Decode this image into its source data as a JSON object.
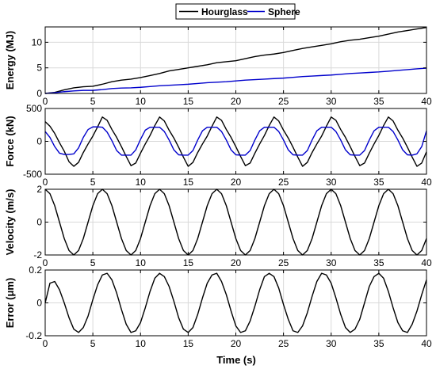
{
  "legend": [
    {
      "name": "Hourglass",
      "color": "#000000"
    },
    {
      "name": "Sphere",
      "color": "#0000cc"
    }
  ],
  "chart_data": [
    {
      "type": "line",
      "ylabel": "Energy (MJ)",
      "xlim": [
        0,
        40
      ],
      "ylim": [
        0,
        13
      ],
      "yticks": [
        0,
        5,
        10
      ],
      "xticks": [
        0,
        5,
        10,
        15,
        20,
        25,
        30,
        35,
        40
      ],
      "grid": true,
      "series": [
        {
          "name": "Hourglass",
          "color": "#000000",
          "x": [
            0,
            1,
            2,
            3,
            4,
            5,
            6,
            7,
            8,
            9,
            10,
            11,
            12,
            13,
            14,
            15,
            16,
            17,
            18,
            19,
            20,
            21,
            22,
            23,
            24,
            25,
            26,
            27,
            28,
            29,
            30,
            31,
            32,
            33,
            34,
            35,
            36,
            37,
            38,
            39,
            40
          ],
          "y": [
            0,
            0.2,
            0.7,
            1.1,
            1.3,
            1.4,
            1.8,
            2.3,
            2.6,
            2.8,
            3.1,
            3.5,
            3.9,
            4.4,
            4.7,
            5.0,
            5.3,
            5.6,
            6.0,
            6.2,
            6.4,
            6.8,
            7.2,
            7.5,
            7.7,
            8.0,
            8.4,
            8.8,
            9.1,
            9.4,
            9.7,
            10.1,
            10.4,
            10.6,
            10.9,
            11.2,
            11.6,
            12.0,
            12.3,
            12.6,
            12.9
          ]
        },
        {
          "name": "Sphere",
          "color": "#0000cc",
          "x": [
            0,
            1,
            2,
            3,
            4,
            5,
            6,
            7,
            8,
            9,
            10,
            11,
            12,
            13,
            14,
            15,
            16,
            17,
            18,
            19,
            20,
            21,
            22,
            23,
            24,
            25,
            26,
            27,
            28,
            29,
            30,
            31,
            32,
            33,
            34,
            35,
            36,
            37,
            38,
            39,
            40
          ],
          "y": [
            0,
            0.15,
            0.35,
            0.5,
            0.6,
            0.6,
            0.75,
            0.95,
            1.05,
            1.1,
            1.2,
            1.35,
            1.5,
            1.6,
            1.7,
            1.8,
            1.95,
            2.1,
            2.2,
            2.3,
            2.45,
            2.6,
            2.7,
            2.8,
            2.9,
            3.0,
            3.15,
            3.3,
            3.4,
            3.5,
            3.6,
            3.75,
            3.9,
            4.0,
            4.1,
            4.2,
            4.35,
            4.5,
            4.65,
            4.8,
            4.95
          ]
        }
      ]
    },
    {
      "type": "line",
      "ylabel": "Force (kN)",
      "xlim": [
        0,
        40
      ],
      "ylim": [
        -500,
        500
      ],
      "yticks": [
        -500,
        0,
        500
      ],
      "xticks": [
        0,
        5,
        10,
        15,
        20,
        25,
        30,
        35,
        40
      ],
      "grid": true,
      "series": [
        {
          "name": "Hourglass",
          "color": "#000000",
          "x": [
            0,
            0.5,
            1,
            1.5,
            2,
            2.5,
            3,
            3.5,
            4,
            4.5,
            5,
            5.5,
            6,
            6.5,
            7,
            7.5,
            8,
            8.5,
            9,
            9.5,
            10,
            10.5,
            11,
            11.5,
            12,
            12.5,
            13,
            13.5,
            14,
            14.5,
            15,
            15.5,
            16,
            16.5,
            17,
            17.5,
            18,
            18.5,
            19,
            19.5,
            20,
            20.5,
            21,
            21.5,
            22,
            22.5,
            23,
            23.5,
            24,
            24.5,
            25,
            25.5,
            26,
            26.5,
            27,
            27.5,
            28,
            28.5,
            29,
            29.5,
            30,
            30.5,
            31,
            31.5,
            32,
            32.5,
            33,
            33.5,
            34,
            34.5,
            35,
            35.5,
            36,
            36.5,
            37,
            37.5,
            38,
            38.5,
            39,
            39.5,
            40
          ],
          "y": [
            300,
            230,
            120,
            -20,
            -150,
            -310,
            -380,
            -320,
            -170,
            -40,
            80,
            220,
            370,
            320,
            180,
            60,
            -80,
            -230,
            -370,
            -330,
            -180,
            -40,
            90,
            240,
            370,
            310,
            170,
            50,
            -90,
            -240,
            -380,
            -320,
            -170,
            -40,
            80,
            230,
            370,
            320,
            180,
            60,
            -80,
            -230,
            -370,
            -330,
            -180,
            -40,
            90,
            240,
            370,
            310,
            170,
            50,
            -90,
            -240,
            -380,
            -320,
            -170,
            -40,
            80,
            230,
            370,
            320,
            180,
            60,
            -80,
            -230,
            -370,
            -330,
            -180,
            -40,
            90,
            240,
            370,
            310,
            170,
            50,
            -90,
            -240,
            -380,
            -330,
            -160
          ]
        },
        {
          "name": "Sphere",
          "color": "#0000cc",
          "x": [
            0,
            0.5,
            1,
            1.5,
            2,
            2.5,
            3,
            3.5,
            4,
            4.5,
            5,
            5.5,
            6,
            6.5,
            7,
            7.5,
            8,
            8.5,
            9,
            9.5,
            10,
            10.5,
            11,
            11.5,
            12,
            12.5,
            13,
            13.5,
            14,
            14.5,
            15,
            15.5,
            16,
            16.5,
            17,
            17.5,
            18,
            18.5,
            19,
            19.5,
            20,
            20.5,
            21,
            21.5,
            22,
            22.5,
            23,
            23.5,
            24,
            24.5,
            25,
            25.5,
            26,
            26.5,
            27,
            27.5,
            28,
            28.5,
            29,
            29.5,
            30,
            30.5,
            31,
            31.5,
            32,
            32.5,
            33,
            33.5,
            34,
            34.5,
            35,
            35.5,
            36,
            36.5,
            37,
            37.5,
            38,
            38.5,
            39,
            39.5,
            40
          ],
          "y": [
            150,
            60,
            -80,
            -180,
            -200,
            -200,
            -190,
            -100,
            60,
            180,
            220,
            220,
            215,
            140,
            10,
            -140,
            -210,
            -210,
            -210,
            -130,
            30,
            170,
            215,
            215,
            215,
            150,
            20,
            -130,
            -205,
            -210,
            -210,
            -140,
            20,
            160,
            215,
            215,
            215,
            150,
            20,
            -130,
            -205,
            -210,
            -210,
            -140,
            20,
            160,
            215,
            215,
            215,
            150,
            20,
            -130,
            -205,
            -210,
            -210,
            -140,
            20,
            160,
            215,
            215,
            215,
            150,
            20,
            -130,
            -205,
            -210,
            -210,
            -140,
            20,
            160,
            215,
            215,
            215,
            150,
            20,
            -130,
            -205,
            -210,
            -190,
            -80,
            160
          ]
        }
      ]
    },
    {
      "type": "line",
      "ylabel": "Velocity (m/s)",
      "xlim": [
        0,
        40
      ],
      "ylim": [
        -2,
        2
      ],
      "yticks": [
        -2,
        0,
        2
      ],
      "xticks": [
        0,
        5,
        10,
        15,
        20,
        25,
        30,
        35,
        40
      ],
      "grid": true,
      "series": [
        {
          "name": "Velocity",
          "color": "#000000",
          "x": [
            0,
            0.5,
            1,
            1.5,
            2,
            2.5,
            3,
            3.5,
            4,
            4.5,
            5,
            5.5,
            6,
            6.5,
            7,
            7.5,
            8,
            8.5,
            9,
            9.5,
            10,
            10.5,
            11,
            11.5,
            12,
            12.5,
            13,
            13.5,
            14,
            14.5,
            15,
            15.5,
            16,
            16.5,
            17,
            17.5,
            18,
            18.5,
            19,
            19.5,
            20,
            20.5,
            21,
            21.5,
            22,
            22.5,
            23,
            23.5,
            24,
            24.5,
            25,
            25.5,
            26,
            26.5,
            27,
            27.5,
            28,
            28.5,
            29,
            29.5,
            30,
            30.5,
            31,
            31.5,
            32,
            32.5,
            33,
            33.5,
            34,
            34.5,
            35,
            35.5,
            36,
            36.5,
            37,
            37.5,
            38,
            38.5,
            39,
            39.5,
            40
          ],
          "y": [
            2,
            1.73,
            1.0,
            0,
            -1.0,
            -1.73,
            -2,
            -1.73,
            -1.0,
            0,
            1.0,
            1.73,
            2,
            1.73,
            1.0,
            0,
            -1.0,
            -1.73,
            -2,
            -1.73,
            -1.0,
            0,
            1.0,
            1.73,
            2,
            1.73,
            1.0,
            0,
            -1.0,
            -1.73,
            -2,
            -1.73,
            -1.0,
            0,
            1.0,
            1.73,
            2,
            1.73,
            1.0,
            0,
            -1.0,
            -1.73,
            -2,
            -1.73,
            -1.0,
            0,
            1.0,
            1.73,
            2,
            1.73,
            1.0,
            0,
            -1.0,
            -1.73,
            -2,
            -1.73,
            -1.0,
            0,
            1.0,
            1.73,
            2,
            1.73,
            1.0,
            0,
            -1.0,
            -1.73,
            -2,
            -1.73,
            -1.0,
            0,
            1.0,
            1.73,
            2,
            1.73,
            1.0,
            0,
            -1.0,
            -1.73,
            -2,
            -1.73,
            -1.0
          ]
        }
      ]
    },
    {
      "type": "line",
      "ylabel": "Error (μm)",
      "xlim": [
        0,
        40
      ],
      "ylim": [
        -0.2,
        0.2
      ],
      "yticks": [
        -0.2,
        0,
        0.2
      ],
      "xticks": [
        0,
        5,
        10,
        15,
        20,
        25,
        30,
        35,
        40
      ],
      "xlabel": "Time (s)",
      "grid": true,
      "series": [
        {
          "name": "Error",
          "color": "#000000",
          "x": [
            0,
            0.5,
            1,
            1.5,
            2,
            2.5,
            3,
            3.5,
            4,
            4.5,
            5,
            5.5,
            6,
            6.5,
            7,
            7.5,
            8,
            8.5,
            9,
            9.5,
            10,
            10.5,
            11,
            11.5,
            12,
            12.5,
            13,
            13.5,
            14,
            14.5,
            15,
            15.5,
            16,
            16.5,
            17,
            17.5,
            18,
            18.5,
            19,
            19.5,
            20,
            20.5,
            21,
            21.5,
            22,
            22.5,
            23,
            23.5,
            24,
            24.5,
            25,
            25.5,
            26,
            26.5,
            27,
            27.5,
            28,
            28.5,
            29,
            29.5,
            30,
            30.5,
            31,
            31.5,
            32,
            32.5,
            33,
            33.5,
            34,
            34.5,
            35,
            35.5,
            36,
            36.5,
            37,
            37.5,
            38,
            38.5,
            39,
            39.5,
            40
          ],
          "y": [
            0,
            0.12,
            0.13,
            0.08,
            0,
            -0.09,
            -0.16,
            -0.18,
            -0.15,
            -0.08,
            0.02,
            0.11,
            0.17,
            0.18,
            0.14,
            0.06,
            -0.04,
            -0.13,
            -0.18,
            -0.17,
            -0.12,
            -0.03,
            0.07,
            0.15,
            0.18,
            0.16,
            0.1,
            0.01,
            -0.09,
            -0.16,
            -0.18,
            -0.15,
            -0.07,
            0.03,
            0.12,
            0.17,
            0.18,
            0.13,
            0.05,
            -0.05,
            -0.14,
            -0.18,
            -0.17,
            -0.11,
            -0.02,
            0.08,
            0.16,
            0.18,
            0.16,
            0.09,
            -0.01,
            -0.1,
            -0.17,
            -0.18,
            -0.14,
            -0.06,
            0.04,
            0.13,
            0.18,
            0.17,
            0.12,
            0.03,
            -0.07,
            -0.15,
            -0.18,
            -0.16,
            -0.1,
            0,
            0.1,
            0.16,
            0.18,
            0.15,
            0.07,
            -0.03,
            -0.12,
            -0.17,
            -0.18,
            -0.13,
            -0.05,
            0.05,
            0.14
          ]
        }
      ]
    }
  ]
}
